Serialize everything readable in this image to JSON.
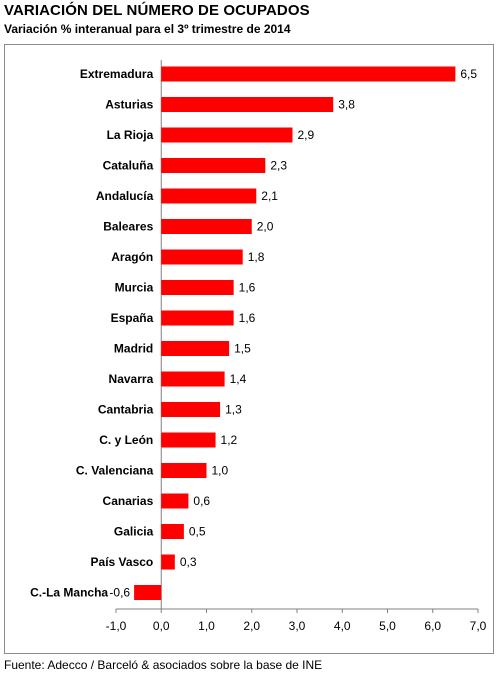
{
  "title": "VARIACIÓN DEL NÚMERO DE OCUPADOS",
  "subtitle": "Variación % interanual para el 3º trimestre de 2014",
  "source": "Fuente: Adecco / Barceló & asociados sobre la base de INE",
  "colors": {
    "bar": "#ff0000",
    "axis": "#808080",
    "frame": "#8c8c8c"
  },
  "chart_data": {
    "type": "bar",
    "orientation": "horizontal",
    "categories": [
      "Extremadura",
      "Asturias",
      "La Rioja",
      "Cataluña",
      "Andalucía",
      "Baleares",
      "Aragón",
      "Murcia",
      "España",
      "Madrid",
      "Navarra",
      "Cantabria",
      "C. y León",
      "C. Valenciana",
      "Canarias",
      "Galicia",
      "País Vasco",
      "C.-La Mancha"
    ],
    "values": [
      6.5,
      3.8,
      2.9,
      2.3,
      2.1,
      2.0,
      1.8,
      1.6,
      1.6,
      1.5,
      1.4,
      1.3,
      1.2,
      1.0,
      0.6,
      0.5,
      0.3,
      -0.6
    ],
    "value_labels": [
      "6,5",
      "3,8",
      "2,9",
      "2,3",
      "2,1",
      "2,0",
      "1,8",
      "1,6",
      "1,6",
      "1,5",
      "1,4",
      "1,3",
      "1,2",
      "1,0",
      "0,6",
      "0,5",
      "0,3",
      "-0,6"
    ],
    "xlim": [
      -1.0,
      7.0
    ],
    "x_ticks": [
      "-1,0",
      "0,0",
      "1,0",
      "2,0",
      "3,0",
      "4,0",
      "5,0",
      "6,0",
      "7,0"
    ],
    "grid": false,
    "legend": "none"
  }
}
